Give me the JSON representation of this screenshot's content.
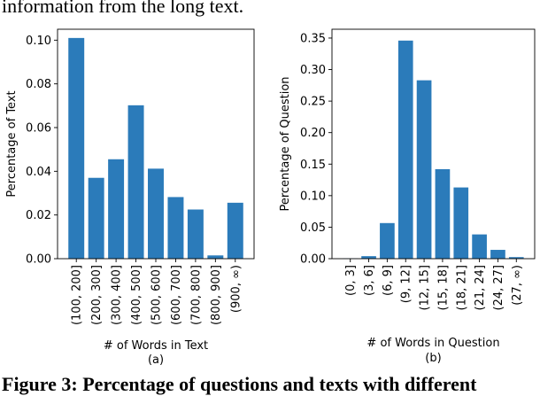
{
  "context_text": "information from the long text.",
  "caption": "Figure 3: Percentage of questions and texts with different",
  "colors": {
    "bar": "#2b7bba",
    "axis": "#000000"
  },
  "chart_data": [
    {
      "type": "bar",
      "xlabel": "# of Words in Text",
      "ylabel": "Percentage of Text",
      "sublabel": "(a)",
      "categories": [
        "(100, 200]",
        "(200, 300]",
        "(300, 400]",
        "(400, 500]",
        "(500, 600]",
        "(600, 700]",
        "(700, 800]",
        "(800, 900]",
        "(900, ∞)"
      ],
      "values": [
        0.101,
        0.037,
        0.0455,
        0.0702,
        0.0412,
        0.0282,
        0.0225,
        0.0015,
        0.0256
      ],
      "ylim": [
        0,
        0.105
      ],
      "yticks": [
        0.0,
        0.02,
        0.04,
        0.06,
        0.08,
        0.1
      ],
      "ytick_labels": [
        "0.00",
        "0.02",
        "0.04",
        "0.06",
        "0.08",
        "0.10"
      ]
    },
    {
      "type": "bar",
      "xlabel": "# of Words in Question",
      "ylabel": "Percentage of Question",
      "sublabel": "(b)",
      "categories": [
        "(0, 3]",
        "(3, 6]",
        "(6, 9]",
        "(9, 12]",
        "(12, 15]",
        "(15, 18]",
        "(18, 21]",
        "(21, 24]",
        "(24, 27]",
        "(27, ∞)"
      ],
      "values": [
        0.0005,
        0.004,
        0.0565,
        0.346,
        0.283,
        0.142,
        0.113,
        0.0385,
        0.014,
        0.0025
      ],
      "ylim": [
        0,
        0.364
      ],
      "yticks": [
        0.0,
        0.05,
        0.1,
        0.15,
        0.2,
        0.25,
        0.3,
        0.35
      ],
      "ytick_labels": [
        "0.00",
        "0.05",
        "0.10",
        "0.15",
        "0.20",
        "0.25",
        "0.30",
        "0.35"
      ]
    }
  ]
}
